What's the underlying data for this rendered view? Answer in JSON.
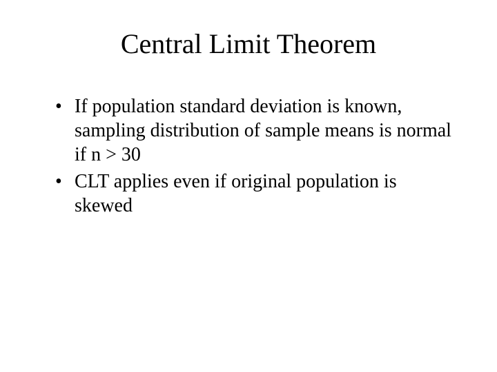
{
  "slide": {
    "title": "Central Limit Theorem",
    "title_fontsize": 40,
    "title_color": "#000000",
    "background_color": "#ffffff",
    "font_family": "Times New Roman",
    "bullets": [
      {
        "text": "If population standard deviation is known, sampling distribution of sample means is normal if n > 30"
      },
      {
        "text": "CLT applies even if original population is skewed"
      }
    ],
    "bullet_fontsize": 28,
    "bullet_color": "#000000",
    "bullet_marker": "•"
  }
}
